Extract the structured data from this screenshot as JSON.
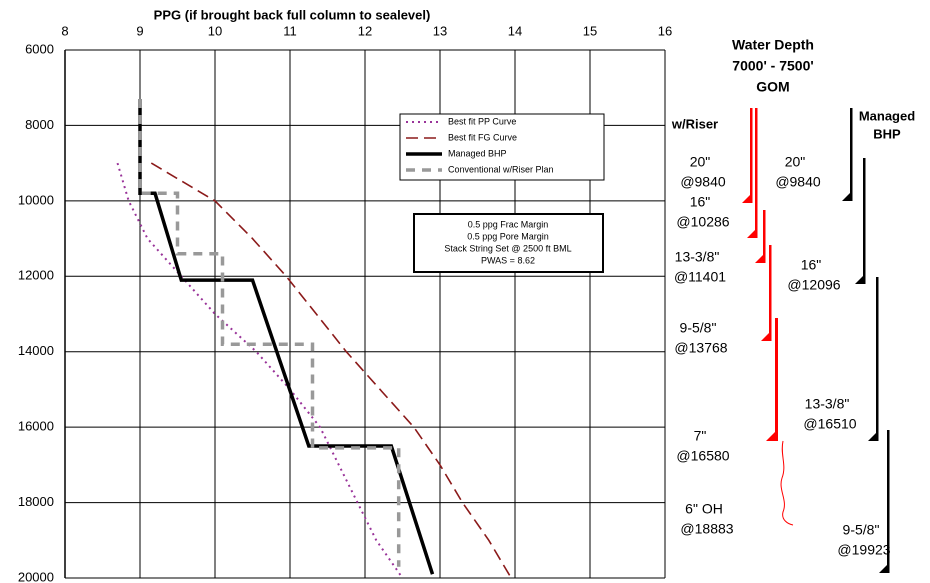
{
  "chart_data": {
    "type": "line",
    "title": "PPG (if brought back full column to sealevel)",
    "xlim": [
      8,
      16
    ],
    "xticks": [
      8,
      9,
      10,
      11,
      12,
      13,
      14,
      15,
      16
    ],
    "ylim": [
      6000,
      20000
    ],
    "yticks": [
      6000,
      8000,
      10000,
      12000,
      14000,
      16000,
      18000,
      20000
    ],
    "y_inverted": true,
    "grid": true,
    "series": [
      {
        "name": "Best fit PP Curve",
        "color": "#993399",
        "style": "dotted",
        "x": [
          8.7,
          8.85,
          9.1,
          9.55,
          10.0,
          10.55,
          11.0,
          11.4,
          11.65,
          11.9,
          12.15,
          12.5
        ],
        "values": [
          9000,
          10000,
          11000,
          12000,
          13000,
          14000,
          15000,
          16000,
          17000,
          18000,
          19000,
          20000
        ]
      },
      {
        "name": "Best fit FG Curve",
        "color": "#8b1a1a",
        "style": "dashed",
        "x": [
          9.15,
          10.0,
          10.5,
          10.95,
          11.35,
          11.75,
          12.2,
          12.65,
          13.0,
          13.3,
          13.65,
          13.95
        ],
        "values": [
          9000,
          10000,
          11000,
          12000,
          13000,
          14000,
          15000,
          16000,
          17000,
          18000,
          19000,
          20000
        ]
      },
      {
        "name": "Managed BHP",
        "color": "#000000",
        "style": "solid",
        "x": [
          9,
          9,
          9.2,
          9.55,
          10.5,
          11.25,
          12.35,
          12.9
        ],
        "values": [
          7300,
          9800,
          9800,
          12100,
          12100,
          16500,
          16500,
          19900
        ]
      },
      {
        "name": "Conventional w/Riser Plan",
        "color": "#999999",
        "style": "thickdash",
        "x": [
          9,
          9,
          9.5,
          9.5,
          10.1,
          10.1,
          11.3,
          11.3,
          12.45,
          12.45
        ],
        "values": [
          7300,
          9800,
          9800,
          11400,
          11400,
          13800,
          13800,
          16550,
          16550,
          19700
        ]
      }
    ],
    "annotation": [
      "0.5 ppg Frac Margin",
      "0.5 ppg Pore Margin",
      "Stack String Set @ 2500 ft BML",
      "PWAS = 8.62"
    ]
  },
  "casing_diagram": {
    "title": [
      "Water Depth",
      "7000' - 7500'",
      "GOM"
    ],
    "columns": [
      {
        "label": [
          "w/Riser"
        ],
        "strings": [
          {
            "size": "20\"",
            "depth": "@9840"
          },
          {
            "size": "16\"",
            "depth": "@10286"
          },
          {
            "size": "13-3/8\"",
            "depth": "@11401"
          },
          {
            "size": "9-5/8\"",
            "depth": "@13768"
          },
          {
            "size": "7\"",
            "depth": "@16580"
          },
          {
            "size": "6\" OH",
            "depth": "@18883"
          }
        ]
      },
      {
        "label": [
          "Managed",
          "BHP"
        ],
        "strings": [
          {
            "size": "20\"",
            "depth": "@9840"
          },
          {
            "size": "16\"",
            "depth": "@12096"
          },
          {
            "size": "13-3/8\"",
            "depth": "@16510"
          },
          {
            "size": "9-5/8\"",
            "depth": "@19923"
          }
        ]
      }
    ]
  }
}
